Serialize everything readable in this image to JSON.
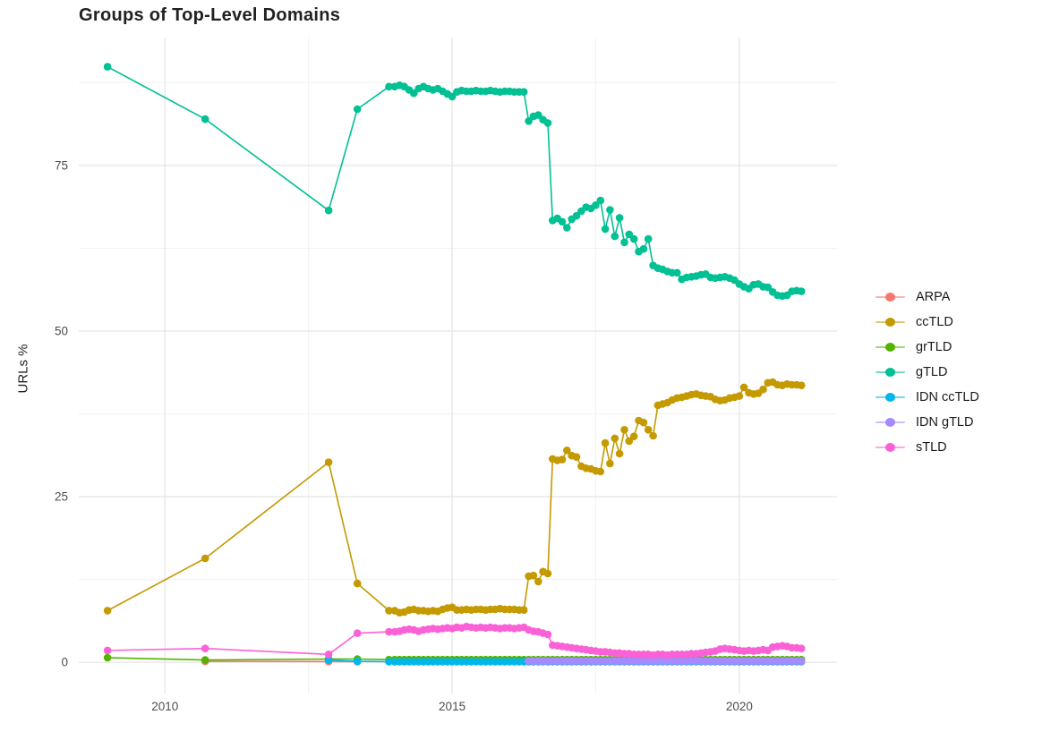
{
  "title": "Groups of Top-Level Domains",
  "colors": {
    "background": "#ffffff",
    "grid_major": "#e4e4e4",
    "grid_minor": "#f1f1f1",
    "tick_label": "#4d4d4d",
    "title": "#212121"
  },
  "chart_data": {
    "type": "line",
    "title": "Groups of Top-Level Domains",
    "xlabel": "",
    "ylabel": "URLs %",
    "grid": true,
    "legend_position": "right",
    "marker": "point",
    "xlim": [
      2008.5,
      2021.7
    ],
    "ylim": [
      -4.7,
      94.3
    ],
    "x_ticks": [
      2010,
      2015,
      2020
    ],
    "x_minor_ticks": [
      2012.5,
      2017.5
    ],
    "y_ticks": [
      0,
      25,
      50,
      75
    ],
    "y_minor_ticks": [
      12.5,
      37.5,
      62.5,
      87.5
    ],
    "draw_order": [
      0,
      2,
      4,
      5,
      1,
      3,
      6
    ],
    "series": [
      {
        "name": "ARPA",
        "color": "#F8766D",
        "early": [
          [
            2010.7,
            0.15
          ],
          [
            2012.85,
            0.12
          ],
          [
            2013.35,
            0.1
          ]
        ]
      },
      {
        "name": "ccTLD",
        "color": "#C49A00",
        "early": [
          [
            2009.0,
            7.8
          ],
          [
            2010.7,
            15.7
          ],
          [
            2012.85,
            30.2
          ],
          [
            2013.35,
            11.9
          ],
          [
            2013.9,
            7.8
          ]
        ],
        "dense": {
          "x0": 2014.0,
          "dx": 0.0833,
          "values": [
            7.8,
            7.5,
            7.6,
            7.9,
            8.0,
            7.8,
            7.8,
            7.7,
            7.8,
            7.7,
            8.0,
            8.2,
            8.3,
            7.9,
            7.9,
            8.0,
            7.9,
            8.0,
            8.0,
            7.9,
            8.0,
            8.0,
            8.1,
            8.0,
            8.0,
            8.0,
            7.9,
            7.9,
            13.0,
            13.1,
            12.2,
            13.7,
            13.4,
            30.7,
            30.5,
            30.6,
            32.0,
            31.2,
            31.0,
            29.6,
            29.3,
            29.2,
            28.9,
            28.8,
            33.1,
            30.0,
            33.8,
            31.5,
            35.1,
            33.4,
            34.1,
            36.5,
            36.2,
            35.1,
            34.2,
            38.8,
            39.0,
            39.2,
            39.6,
            39.9,
            40.0,
            40.2,
            40.4,
            40.5,
            40.3,
            40.2,
            40.1,
            39.7,
            39.5,
            39.6,
            39.9,
            40.0,
            40.2,
            41.5,
            40.7,
            40.5,
            40.6,
            41.2,
            42.2,
            42.3,
            41.9,
            41.8,
            42.0,
            41.9,
            41.9,
            41.8
          ]
        }
      },
      {
        "name": "grTLD",
        "color": "#53B400",
        "early": [
          [
            2009.0,
            0.7
          ],
          [
            2010.7,
            0.35
          ],
          [
            2012.85,
            0.5
          ],
          [
            2013.35,
            0.5
          ],
          [
            2013.9,
            0.4
          ]
        ],
        "dense": {
          "x0": 2014.0,
          "dx": 0.0833,
          "n": 86,
          "const": 0.4
        }
      },
      {
        "name": "gTLD",
        "color": "#00C094",
        "early": [
          [
            2009.0,
            89.9
          ],
          [
            2010.7,
            82.0
          ],
          [
            2012.85,
            68.2
          ],
          [
            2013.35,
            83.5
          ],
          [
            2013.9,
            86.9
          ]
        ],
        "dense": {
          "x0": 2014.0,
          "dx": 0.0833,
          "values": [
            86.9,
            87.1,
            86.9,
            86.4,
            85.9,
            86.6,
            86.9,
            86.6,
            86.4,
            86.6,
            86.2,
            85.8,
            85.4,
            86.1,
            86.3,
            86.2,
            86.2,
            86.3,
            86.2,
            86.2,
            86.3,
            86.2,
            86.1,
            86.2,
            86.2,
            86.1,
            86.1,
            86.1,
            81.7,
            82.4,
            82.6,
            81.9,
            81.4,
            66.7,
            67.0,
            66.5,
            65.6,
            66.9,
            67.4,
            68.1,
            68.7,
            68.5,
            69.0,
            69.7,
            65.4,
            68.3,
            64.3,
            67.1,
            63.4,
            64.6,
            63.9,
            62.0,
            62.4,
            63.9,
            59.9,
            59.5,
            59.3,
            59.0,
            58.8,
            58.8,
            57.8,
            58.1,
            58.2,
            58.3,
            58.5,
            58.6,
            58.1,
            58.0,
            58.1,
            58.2,
            58.0,
            57.7,
            57.1,
            56.7,
            56.4,
            57.0,
            57.1,
            56.7,
            56.6,
            55.9,
            55.4,
            55.3,
            55.4,
            56.0,
            56.1,
            56.0
          ]
        }
      },
      {
        "name": "IDN ccTLD",
        "color": "#00B6EB",
        "early": [
          [
            2012.85,
            0.35
          ],
          [
            2013.35,
            0.15
          ],
          [
            2013.9,
            0.1
          ]
        ],
        "dense": {
          "x0": 2014.0,
          "dx": 0.0833,
          "n": 86,
          "const": 0.1
        }
      },
      {
        "name": "IDN gTLD",
        "color": "#A58AFF",
        "early": [],
        "dense": {
          "x0": 2016.33,
          "dx": 0.0833,
          "n": 58,
          "const": 0.2
        }
      },
      {
        "name": "sTLD",
        "color": "#FB61D7",
        "early": [
          [
            2009.0,
            1.8
          ],
          [
            2010.7,
            2.1
          ],
          [
            2012.85,
            1.2
          ],
          [
            2013.35,
            4.4
          ],
          [
            2013.9,
            4.6
          ]
        ],
        "dense": {
          "x0": 2014.0,
          "dx": 0.0833,
          "values": [
            4.6,
            4.7,
            4.9,
            5.0,
            4.9,
            4.7,
            4.9,
            5.0,
            5.1,
            5.0,
            5.1,
            5.2,
            5.1,
            5.3,
            5.2,
            5.4,
            5.3,
            5.2,
            5.3,
            5.2,
            5.3,
            5.2,
            5.1,
            5.2,
            5.2,
            5.1,
            5.2,
            5.3,
            4.9,
            4.7,
            4.6,
            4.4,
            4.2,
            2.6,
            2.5,
            2.4,
            2.3,
            2.2,
            2.1,
            2.0,
            1.9,
            1.8,
            1.7,
            1.6,
            1.6,
            1.5,
            1.4,
            1.4,
            1.3,
            1.3,
            1.2,
            1.2,
            1.2,
            1.2,
            1.1,
            1.2,
            1.2,
            1.1,
            1.2,
            1.2,
            1.2,
            1.2,
            1.3,
            1.3,
            1.4,
            1.5,
            1.6,
            1.7,
            2.0,
            2.1,
            2.0,
            1.9,
            1.8,
            1.7,
            1.8,
            1.7,
            1.8,
            1.9,
            1.8,
            2.3,
            2.4,
            2.5,
            2.4,
            2.2,
            2.2,
            2.1
          ]
        }
      }
    ]
  }
}
